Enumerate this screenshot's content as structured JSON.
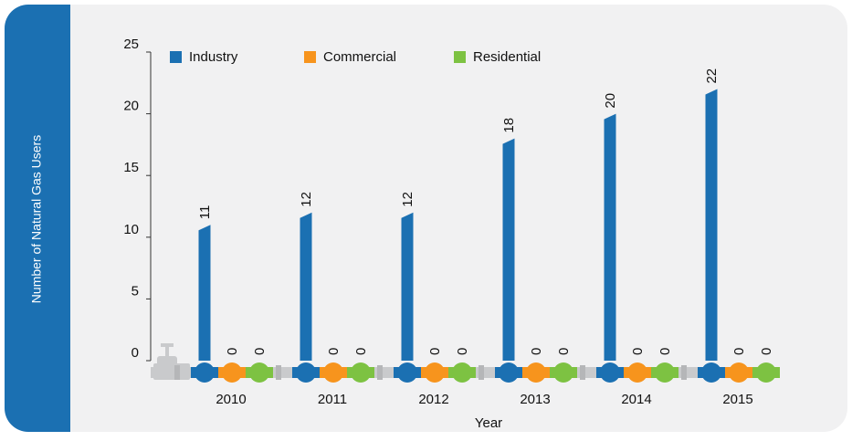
{
  "chart_data": {
    "type": "bar",
    "y_label": "Number of Natural Gas Users",
    "x_label": "Year",
    "categories": [
      "2010",
      "2011",
      "2012",
      "2013",
      "2014",
      "2015"
    ],
    "series": [
      {
        "name": "Industry",
        "color": "#1b70b2",
        "values": [
          11,
          12,
          12,
          18,
          20,
          22
        ]
      },
      {
        "name": "Commercial",
        "color": "#f7941d",
        "values": [
          0,
          0,
          0,
          0,
          0,
          0
        ]
      },
      {
        "name": "Residential",
        "color": "#7dc242",
        "values": [
          0,
          0,
          0,
          0,
          0,
          0
        ]
      }
    ],
    "ylim": [
      0,
      25
    ],
    "yticks": [
      0,
      5,
      10,
      15,
      20,
      25
    ],
    "legend": "top"
  }
}
